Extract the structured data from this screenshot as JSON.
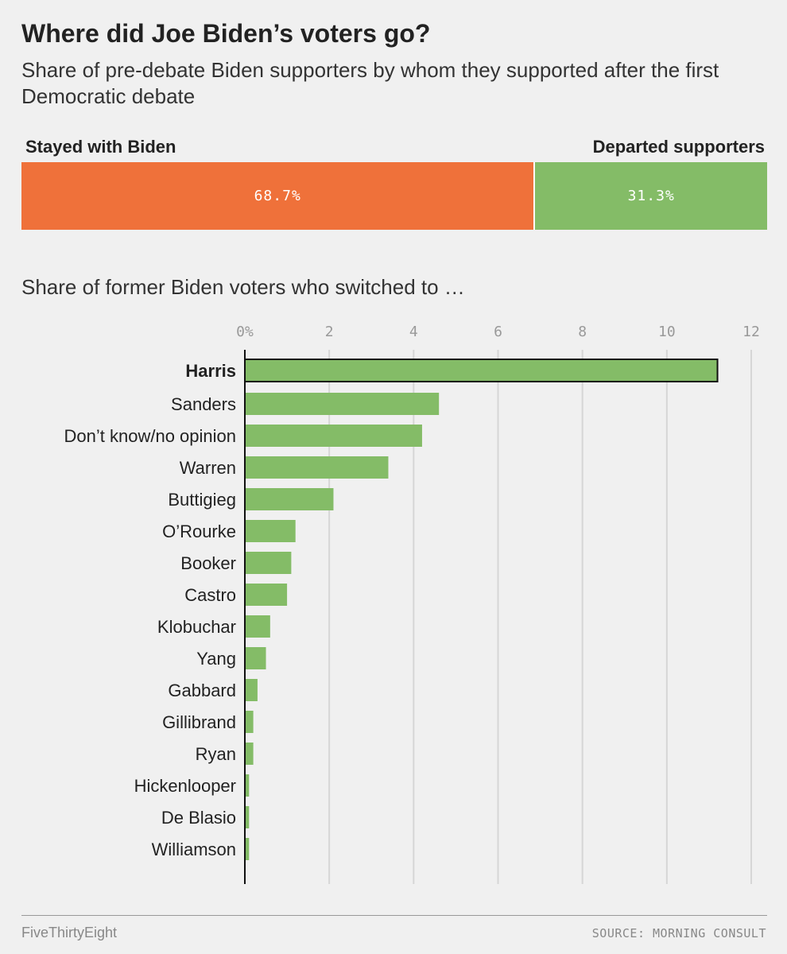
{
  "header": {
    "title": "Where did Joe Biden’s voters go?",
    "subtitle": "Share of pre-debate Biden supporters by whom they supported after the first Democratic debate"
  },
  "split": {
    "left_label": "Stayed with Biden",
    "right_label": "Departed supporters",
    "left_value": 68.7,
    "right_value": 31.3,
    "left_text": "68.7%",
    "right_text": "31.3%",
    "left_color": "#ef713a",
    "right_color": "#84bc67"
  },
  "section_label": "Share of former Biden voters who switched to …",
  "chart_data": {
    "type": "bar",
    "orientation": "horizontal",
    "categories": [
      "Harris",
      "Sanders",
      "Don’t know/no opinion",
      "Warren",
      "Buttigieg",
      "O’Rourke",
      "Booker",
      "Castro",
      "Klobuchar",
      "Yang",
      "Gabbard",
      "Gillibrand",
      "Ryan",
      "Hickenlooper",
      "De Blasio",
      "Williamson"
    ],
    "values": [
      11.2,
      4.6,
      4.2,
      3.4,
      2.1,
      1.2,
      1.1,
      1.0,
      0.6,
      0.5,
      0.3,
      0.2,
      0.2,
      0.1,
      0.1,
      0.1
    ],
    "highlight": "Harris",
    "xlim": [
      0,
      12
    ],
    "ticks": [
      0,
      2,
      4,
      6,
      8,
      10,
      12
    ],
    "tick_labels": [
      "0%",
      "2",
      "4",
      "6",
      "8",
      "10",
      "12"
    ],
    "grid": true,
    "bar_color": "#84bc67"
  },
  "footer": {
    "brand": "FiveThirtyEight",
    "source": "SOURCE: MORNING CONSULT"
  }
}
